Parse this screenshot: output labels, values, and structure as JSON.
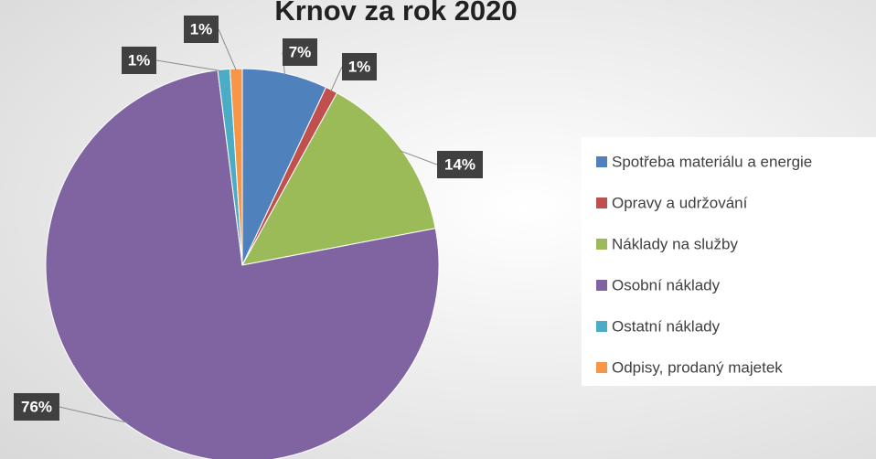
{
  "chart_data": {
    "type": "pie",
    "title": "Krnov za rok 2020",
    "categories": [
      "Spotřeba materiálu a energie",
      "Opravy a udržování",
      "Náklady na služby",
      "Osobní náklady",
      "Ostatní náklady",
      "Odpisy, prodaný majetek"
    ],
    "values": [
      7,
      1,
      14,
      76,
      1,
      1
    ],
    "value_labels": [
      "7%",
      "1%",
      "14%",
      "76%",
      "1%",
      "1%"
    ],
    "colors": [
      "#4f81bd",
      "#c0504d",
      "#9bbb59",
      "#8064a2",
      "#4bacc6",
      "#f79646"
    ],
    "legend": "right"
  }
}
